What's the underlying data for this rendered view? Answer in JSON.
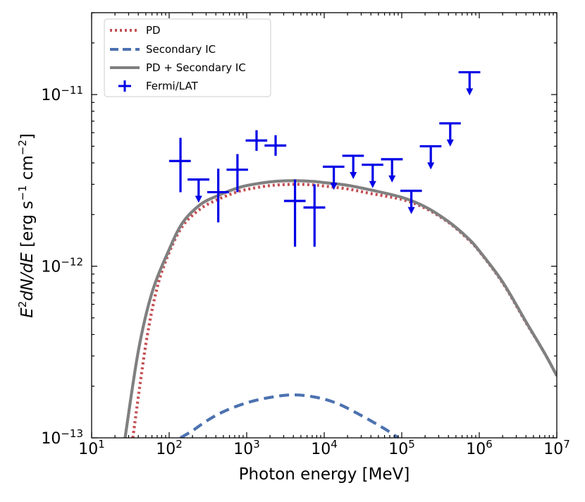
{
  "chart_data": {
    "type": "line",
    "xscale": "log",
    "yscale": "log",
    "xlim": [
      10,
      10000000
    ],
    "ylim": [
      1e-13,
      3e-11
    ],
    "xlabel": "Photon energy [MeV]",
    "ylabel": {
      "e": "E",
      "two": "2",
      "dn": "dN/dE",
      "units_open": " [erg s",
      "minus_one": "−1",
      "units_mid": " cm",
      "minus_two": "−2",
      "units_close": "]"
    },
    "x_ticks": [
      {
        "value": 10,
        "base": "10",
        "exp": "1"
      },
      {
        "value": 100,
        "base": "10",
        "exp": "2"
      },
      {
        "value": 1000,
        "base": "10",
        "exp": "3"
      },
      {
        "value": 10000,
        "base": "10",
        "exp": "4"
      },
      {
        "value": 100000,
        "base": "10",
        "exp": "5"
      },
      {
        "value": 1000000,
        "base": "10",
        "exp": "6"
      },
      {
        "value": 10000000,
        "base": "10",
        "exp": "7"
      }
    ],
    "y_ticks": [
      {
        "value": 1e-13,
        "base": "10",
        "exp": "−13"
      },
      {
        "value": 1e-12,
        "base": "10",
        "exp": "−12"
      },
      {
        "value": 1e-11,
        "base": "10",
        "exp": "−11"
      }
    ],
    "legend_position": "top-left",
    "series": [
      {
        "name": "PD",
        "style": "dotted",
        "color": "#c44e52",
        "points": [
          [
            34,
            1e-13
          ],
          [
            50,
            3.5e-13
          ],
          [
            70,
            7.5e-13
          ],
          [
            100,
            1.2e-12
          ],
          [
            150,
            1.72e-12
          ],
          [
            250,
            2.15e-12
          ],
          [
            400,
            2.42e-12
          ],
          [
            700,
            2.68e-12
          ],
          [
            1000,
            2.8e-12
          ],
          [
            2000,
            2.95e-12
          ],
          [
            4000,
            3e-12
          ],
          [
            7000,
            2.98e-12
          ],
          [
            10000,
            2.93e-12
          ],
          [
            20000,
            2.82e-12
          ],
          [
            40000,
            2.65e-12
          ],
          [
            100000,
            2.45e-12
          ],
          [
            200000,
            2.18e-12
          ],
          [
            400000,
            1.8e-12
          ],
          [
            700000,
            1.45e-12
          ],
          [
            1000000,
            1.22e-12
          ],
          [
            2000000,
            8e-13
          ],
          [
            4000000,
            4.7e-13
          ],
          [
            7000000,
            3.1e-13
          ],
          [
            10000000,
            2.3e-13
          ]
        ]
      },
      {
        "name": "Secondary IC",
        "style": "dashed",
        "color": "#4c72b0",
        "points": [
          [
            140,
            1e-13
          ],
          [
            200,
            1.1e-13
          ],
          [
            300,
            1.25e-13
          ],
          [
            500,
            1.42e-13
          ],
          [
            1000,
            1.6e-13
          ],
          [
            2000,
            1.72e-13
          ],
          [
            4000,
            1.78e-13
          ],
          [
            8000,
            1.72e-13
          ],
          [
            15000,
            1.58e-13
          ],
          [
            30000,
            1.35e-13
          ],
          [
            60000,
            1.13e-13
          ],
          [
            90000,
            1e-13
          ]
        ]
      },
      {
        "name": "PD + Secondary IC",
        "style": "solid",
        "color": "#808080",
        "points": [
          [
            27,
            1e-13
          ],
          [
            40,
            3.2e-13
          ],
          [
            60,
            7e-13
          ],
          [
            100,
            1.25e-12
          ],
          [
            150,
            1.8e-12
          ],
          [
            250,
            2.28e-12
          ],
          [
            400,
            2.55e-12
          ],
          [
            700,
            2.82e-12
          ],
          [
            1000,
            2.95e-12
          ],
          [
            2000,
            3.1e-12
          ],
          [
            4000,
            3.15e-12
          ],
          [
            7000,
            3.12e-12
          ],
          [
            10000,
            3.07e-12
          ],
          [
            20000,
            2.96e-12
          ],
          [
            40000,
            2.78e-12
          ],
          [
            100000,
            2.52e-12
          ],
          [
            200000,
            2.22e-12
          ],
          [
            400000,
            1.82e-12
          ],
          [
            700000,
            1.47e-12
          ],
          [
            1000000,
            1.23e-12
          ],
          [
            2000000,
            8.1e-13
          ],
          [
            4000000,
            4.75e-13
          ],
          [
            7000000,
            3.1e-13
          ],
          [
            10000000,
            2.3e-13
          ]
        ]
      }
    ],
    "fermi_lat": {
      "name": "Fermi/LAT",
      "color": "#0000e6",
      "points": [
        {
          "x": 140,
          "y": 4.1e-12,
          "ylo": 2.7e-12,
          "yhi": 5.6e-12,
          "xlo": 100,
          "xhi": 190
        },
        {
          "x": 430,
          "y": 2.7e-12,
          "ylo": 1.8e-12,
          "yhi": 3.7e-12,
          "xlo": 310,
          "xhi": 590
        },
        {
          "x": 760,
          "y": 3.65e-12,
          "ylo": 2.7e-12,
          "yhi": 4.5e-12,
          "xlo": 550,
          "xhi": 1040
        },
        {
          "x": 1340,
          "y": 5.4e-12,
          "ylo": 4.7e-12,
          "yhi": 6.2e-12,
          "xlo": 970,
          "xhi": 1840
        },
        {
          "x": 2360,
          "y": 5.05e-12,
          "ylo": 4.4e-12,
          "yhi": 5.8e-12,
          "xlo": 1700,
          "xhi": 3240
        },
        {
          "x": 4200,
          "y": 2.4e-12,
          "ylo": 1.3e-12,
          "yhi": 3.2e-12,
          "xlo": 3030,
          "xhi": 5750
        },
        {
          "x": 7500,
          "y": 2.2e-12,
          "ylo": 1.3e-12,
          "yhi": 3e-12,
          "xlo": 5400,
          "xhi": 10300
        }
      ],
      "upper_limits": [
        {
          "x": 240,
          "y": 3.2e-12,
          "xlo": 173,
          "xhi": 330
        },
        {
          "x": 13300,
          "y": 3.8e-12,
          "xlo": 9600,
          "xhi": 18200
        },
        {
          "x": 23700,
          "y": 4.4e-12,
          "xlo": 17100,
          "xhi": 32500
        },
        {
          "x": 42200,
          "y": 3.9e-12,
          "xlo": 30500,
          "xhi": 57800
        },
        {
          "x": 75000,
          "y": 4.2e-12,
          "xlo": 54000,
          "xhi": 103000
        },
        {
          "x": 133000,
          "y": 2.75e-12,
          "xlo": 96000,
          "xhi": 182000
        },
        {
          "x": 237000,
          "y": 5e-12,
          "xlo": 171000,
          "xhi": 325000
        },
        {
          "x": 422000,
          "y": 6.8e-12,
          "xlo": 305000,
          "xhi": 578000
        },
        {
          "x": 750000,
          "y": 1.35e-11,
          "xlo": 540000,
          "xhi": 1030000
        }
      ]
    },
    "legend": [
      {
        "label": "PD",
        "style": "dotted",
        "color": "#c44e52"
      },
      {
        "label": "Secondary IC",
        "style": "dashed",
        "color": "#4c72b0"
      },
      {
        "label": "PD + Secondary IC",
        "style": "solid",
        "color": "#808080"
      },
      {
        "label": "Fermi/LAT",
        "style": "errorbar",
        "color": "#0000e6"
      }
    ]
  }
}
